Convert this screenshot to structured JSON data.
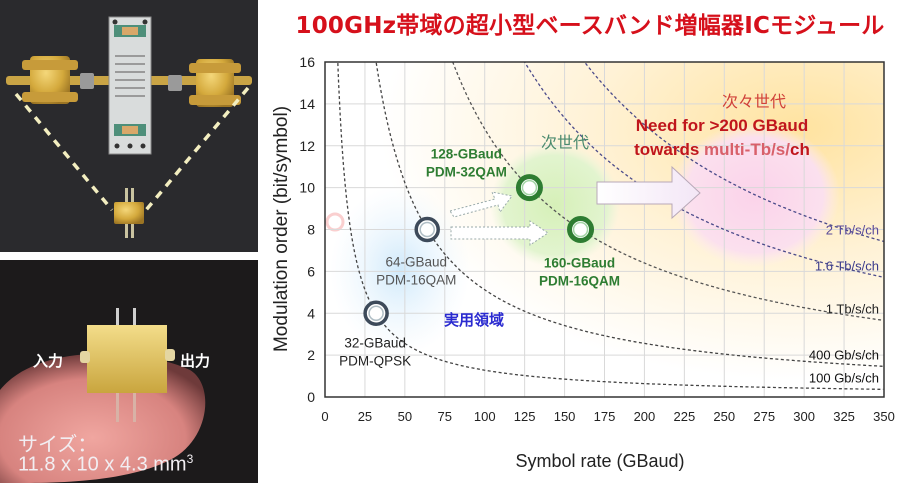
{
  "title": "100GHz帯域の超小型ベースバンド増幅器ICモジュール",
  "photos": {
    "top_alt": "module-with-connectors",
    "bottom": {
      "input_label": "入力",
      "output_label": "出力",
      "size_label": "サイズ：",
      "size_value": "11.8 x 10 x 4.3 mm",
      "size_superscript": "3"
    }
  },
  "colors": {
    "title": "#d6101b",
    "current_gen": "#3d4a5a",
    "next_gen": "#2e7d32",
    "next_next_gen": "#c0161c",
    "practical_area": "#2a2ad0",
    "rate_2t": "#5a4a9a"
  },
  "chart_data": {
    "type": "scatter",
    "xlabel": "Symbol rate (GBaud)",
    "ylabel": "Modulation order (bit/symbol)",
    "xlim": [
      0,
      350
    ],
    "ylim": [
      0,
      16
    ],
    "xticks": [
      "0",
      "25",
      "50",
      "75",
      "100",
      "125",
      "150",
      "175",
      "200",
      "225",
      "250",
      "275",
      "300",
      "325",
      "350"
    ],
    "yticks": [
      "0",
      "2",
      "4",
      "6",
      "8",
      "10",
      "12",
      "14",
      "16"
    ],
    "grid": true,
    "points": [
      {
        "x": 32,
        "y": 4,
        "label1": "32-GBaud",
        "label2": "PDM-QPSK",
        "group": "current"
      },
      {
        "x": 64,
        "y": 8,
        "label1": "64-GBaud",
        "label2": "PDM-16QAM",
        "group": "current"
      },
      {
        "x": 128,
        "y": 10,
        "label1": "128-GBaud",
        "label2": "PDM-32QAM",
        "group": "next"
      },
      {
        "x": 160,
        "y": 8,
        "label1": "160-GBaud",
        "label2": "PDM-16QAM",
        "group": "next"
      }
    ],
    "curves": [
      {
        "label": "100 Gb/s/ch",
        "k": 128
      },
      {
        "label": "400 Gb/s/ch",
        "k": 512
      },
      {
        "label": "1 Tb/s/ch",
        "k": 1280
      },
      {
        "label": "1.6 Tb/s/ch",
        "k": 2000
      },
      {
        "label": "2 Tb/s/ch",
        "k": 2600
      }
    ],
    "regions": {
      "current": "実用領域",
      "next": "次世代",
      "next_next": "次々世代"
    },
    "annotation": {
      "line1": "Need for >200 GBaud",
      "line2_a": "towards ",
      "line2_b": "multi-Tb/s/",
      "line2_c": "ch"
    }
  }
}
